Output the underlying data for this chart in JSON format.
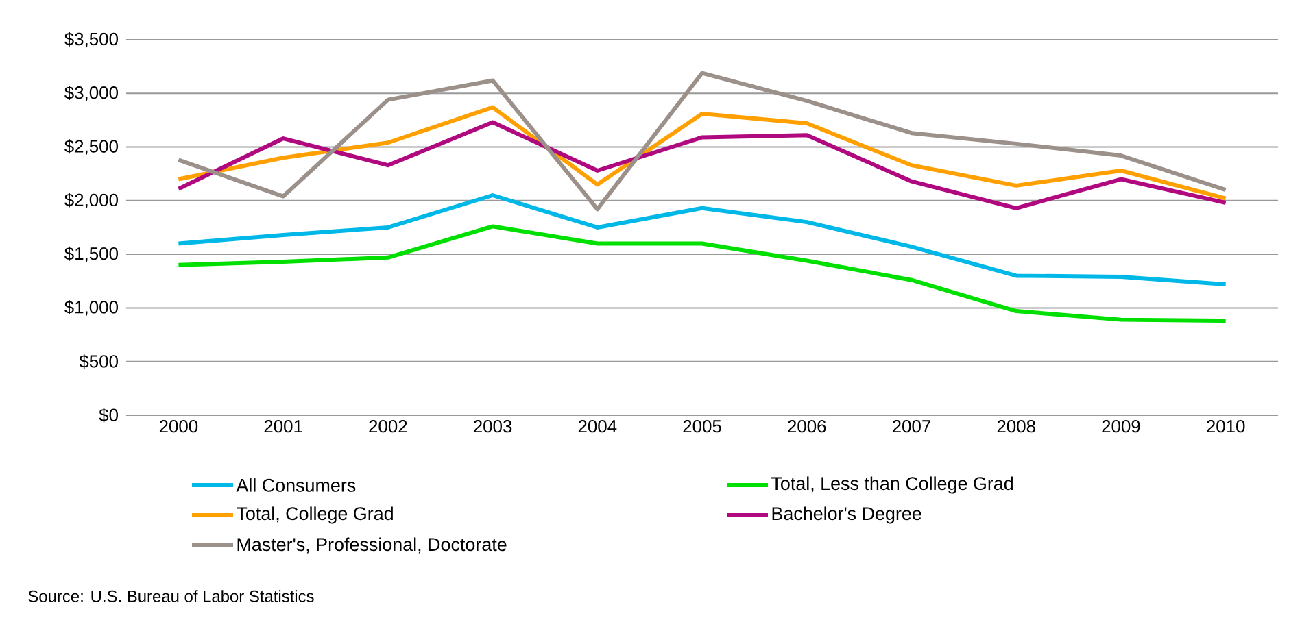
{
  "chart_data": {
    "type": "line",
    "categories": [
      "2000",
      "2001",
      "2002",
      "2003",
      "2004",
      "2005",
      "2006",
      "2007",
      "2008",
      "2009",
      "2010"
    ],
    "series": [
      {
        "name": "All Consumers",
        "color": "#00b8e8",
        "values": [
          1600,
          1680,
          1750,
          2050,
          1750,
          1930,
          1800,
          1570,
          1300,
          1290,
          1220
        ]
      },
      {
        "name": "Total, Less than College Grad",
        "color": "#00e000",
        "values": [
          1400,
          1430,
          1470,
          1760,
          1600,
          1600,
          1440,
          1260,
          970,
          890,
          880
        ]
      },
      {
        "name": "Total, College Grad",
        "color": "#ffa000",
        "values": [
          2200,
          2400,
          2540,
          2870,
          2150,
          2810,
          2720,
          2330,
          2140,
          2280,
          2020
        ]
      },
      {
        "name": "Bachelor's Degree",
        "color": "#b0087f",
        "values": [
          2110,
          2580,
          2330,
          2730,
          2280,
          2590,
          2610,
          2180,
          1930,
          2200,
          1980
        ]
      },
      {
        "name": "Master's, Professional, Doctorate",
        "color": "#9c918a",
        "values": [
          2380,
          2040,
          2940,
          3120,
          1920,
          3190,
          2930,
          2630,
          2530,
          2420,
          2100
        ]
      }
    ],
    "ylim": [
      0,
      3500
    ],
    "yticks": [
      {
        "value": 0,
        "label": "$0"
      },
      {
        "value": 500,
        "label": "$500"
      },
      {
        "value": 1000,
        "label": "$1,000"
      },
      {
        "value": 1500,
        "label": "$1,500"
      },
      {
        "value": 2000,
        "label": "$2,000"
      },
      {
        "value": 2500,
        "label": "$2,500"
      },
      {
        "value": 3000,
        "label": "$3,000"
      },
      {
        "value": 3500,
        "label": "$3,500"
      }
    ],
    "grid": "y",
    "legend": "bottom",
    "marker": "none",
    "line_style": "solid",
    "annotations": [
      "Source:  U.S. Bureau of Labor Statistics"
    ]
  }
}
